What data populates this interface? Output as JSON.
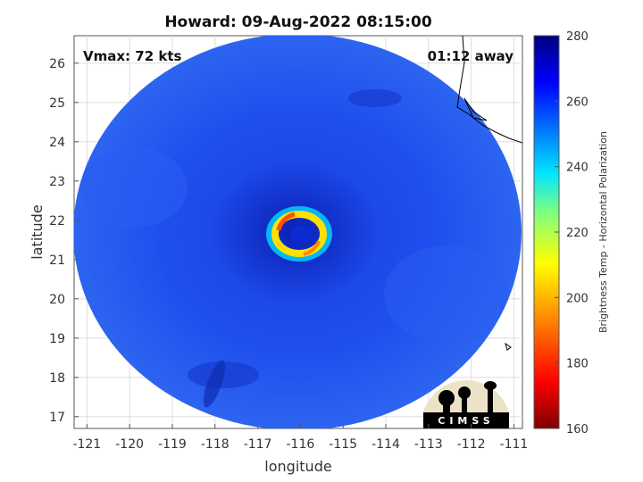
{
  "title": "Howard: 09-Aug-2022 08:15:00",
  "vmax_label": "Vmax: 72 kts",
  "time_away_label": "01:12 away",
  "x_axis": {
    "label": "longitude",
    "range": [
      -121.3,
      -110.8
    ],
    "ticks": [
      -121,
      -120,
      -119,
      -118,
      -117,
      -116,
      -115,
      -114,
      -113,
      -112,
      -111
    ]
  },
  "y_axis": {
    "label": "latitude",
    "range": [
      16.7,
      26.7
    ],
    "ticks": [
      17,
      18,
      19,
      20,
      21,
      22,
      23,
      24,
      25,
      26
    ]
  },
  "colorbar": {
    "label": "Brightness Temp - Horizontal Polarization",
    "range": [
      160,
      280
    ],
    "ticks": [
      160,
      180,
      200,
      220,
      240,
      260,
      280
    ]
  },
  "grid": true,
  "storm": {
    "name": "Howard",
    "center_lon": -116.2,
    "center_lat": 21.65
  },
  "logo": {
    "text": "CIMSS"
  }
}
